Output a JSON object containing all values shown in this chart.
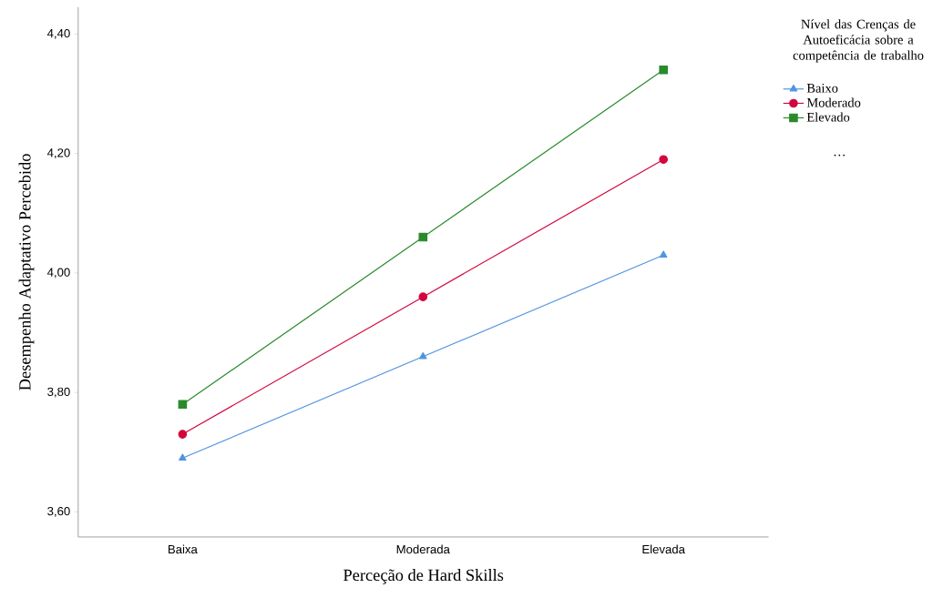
{
  "chart_data": {
    "type": "line",
    "xlabel": "Perceção de Hard Skills",
    "ylabel": "Desempenho Adaptativo Percebido",
    "legend_title": "Nível das Crenças de Autoeficácia sobre a competência de trabalho",
    "categories": [
      "Baixa",
      "Moderada",
      "Elevada"
    ],
    "series": [
      {
        "name": "Baixo",
        "color": "#4f94e0",
        "marker": "triangle",
        "values": [
          3.69,
          3.86,
          4.03
        ]
      },
      {
        "name": "Moderado",
        "color": "#d2063c",
        "marker": "circle",
        "values": [
          3.73,
          3.96,
          4.19
        ]
      },
      {
        "name": "Elevado",
        "color": "#2a8a2a",
        "marker": "square",
        "values": [
          3.78,
          4.06,
          4.34
        ]
      }
    ],
    "ylim": [
      3.558,
      4.445
    ],
    "yticks": [
      {
        "value": 3.6,
        "label": "3,60"
      },
      {
        "value": 3.8,
        "label": "3,80"
      },
      {
        "value": 4.0,
        "label": "4,00"
      },
      {
        "value": 4.2,
        "label": "4,20"
      },
      {
        "value": 4.4,
        "label": "4,40"
      }
    ],
    "legend": "top right",
    "grid": false,
    "line_style": "solid",
    "annotations": [
      "…"
    ]
  }
}
